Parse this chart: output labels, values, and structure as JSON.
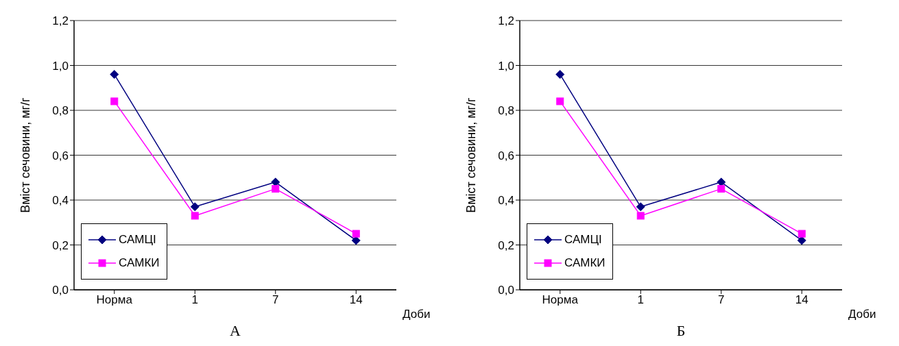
{
  "chart_data": [
    {
      "type": "line",
      "title": "А",
      "ylabel": "Вміст сечовини, мг/г",
      "xlabel": "Доби",
      "categories": [
        "Норма",
        "1",
        "7",
        "14"
      ],
      "series": [
        {
          "name": "САМЦІ",
          "color": "#000080",
          "values": [
            0.96,
            0.37,
            0.48,
            0.22
          ],
          "marker": "diamond"
        },
        {
          "name": "САМКИ",
          "color": "#ff00ff",
          "values": [
            0.84,
            0.33,
            0.45,
            0.25
          ],
          "marker": "square"
        }
      ],
      "ylim": [
        0,
        1.2
      ],
      "yticks": [
        {
          "value": 0,
          "label": "0,0"
        },
        {
          "value": 0.2,
          "label": "0,2"
        },
        {
          "value": 0.4,
          "label": "0,4"
        },
        {
          "value": 0.6,
          "label": "0,6"
        },
        {
          "value": 0.8,
          "label": "0,8"
        },
        {
          "value": 1.0,
          "label": "1,0"
        },
        {
          "value": 1.2,
          "label": "1,2"
        }
      ],
      "grid": "y",
      "legend": "bottom left"
    },
    {
      "type": "line",
      "title": "Б",
      "ylabel": "Вміст сечовини, мг/г",
      "xlabel": "Доби",
      "categories": [
        "Норма",
        "1",
        "7",
        "14"
      ],
      "series": [
        {
          "name": "САМЦІ",
          "color": "#000080",
          "values": [
            0.96,
            0.37,
            0.48,
            0.22
          ],
          "marker": "diamond"
        },
        {
          "name": "САМКИ",
          "color": "#ff00ff",
          "values": [
            0.84,
            0.33,
            0.45,
            0.25
          ],
          "marker": "square"
        }
      ],
      "ylim": [
        0,
        1.2
      ],
      "yticks": [
        {
          "value": 0,
          "label": "0,0"
        },
        {
          "value": 0.2,
          "label": "0,2"
        },
        {
          "value": 0.4,
          "label": "0,4"
        },
        {
          "value": 0.6,
          "label": "0,6"
        },
        {
          "value": 0.8,
          "label": "0,8"
        },
        {
          "value": 1.0,
          "label": "1,0"
        },
        {
          "value": 1.2,
          "label": "1,2"
        }
      ],
      "grid": "y",
      "legend": "bottom left"
    }
  ]
}
